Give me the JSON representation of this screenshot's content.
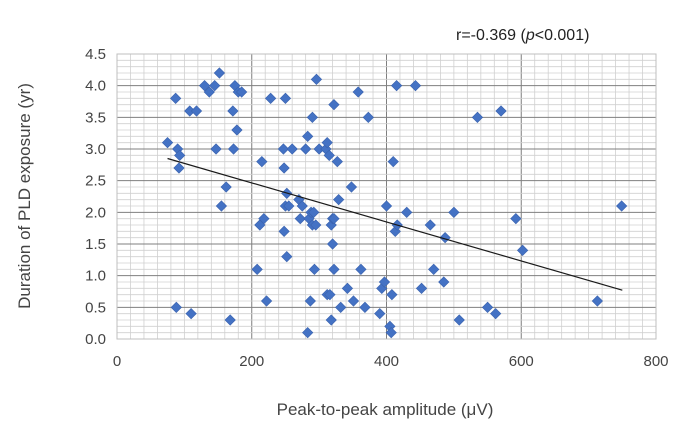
{
  "chart_data": {
    "type": "scatter",
    "xlabel": "Peak-to-peak amplitude (μV)",
    "ylabel": "Duration of PLD exposure (yr)",
    "xlim": [
      0,
      800
    ],
    "ylim": [
      0,
      4.5
    ],
    "x_ticks": [
      0,
      200,
      400,
      600,
      800
    ],
    "y_ticks": [
      "0.0",
      "0.5",
      "1.0",
      "1.5",
      "2.0",
      "2.5",
      "3.0",
      "3.5",
      "4.0",
      "4.5"
    ],
    "grid": true,
    "marker_color": "#4472C4",
    "annotation": {
      "prefix": "r=-0.369 (",
      "p_symbol": "p",
      "suffix": "<0.001)"
    },
    "trendline": {
      "x": [
        75,
        750
      ],
      "y": [
        2.85,
        0.77
      ]
    },
    "points": [
      {
        "x": 75,
        "y": 3.1
      },
      {
        "x": 87,
        "y": 3.8
      },
      {
        "x": 90,
        "y": 3.0
      },
      {
        "x": 93,
        "y": 2.9
      },
      {
        "x": 92,
        "y": 2.7
      },
      {
        "x": 88,
        "y": 0.5
      },
      {
        "x": 108,
        "y": 3.6
      },
      {
        "x": 118,
        "y": 3.6
      },
      {
        "x": 110,
        "y": 0.4
      },
      {
        "x": 130,
        "y": 4.0
      },
      {
        "x": 137,
        "y": 3.9
      },
      {
        "x": 145,
        "y": 4.0
      },
      {
        "x": 152,
        "y": 4.2
      },
      {
        "x": 147,
        "y": 3.0
      },
      {
        "x": 155,
        "y": 2.1
      },
      {
        "x": 162,
        "y": 2.4
      },
      {
        "x": 168,
        "y": 0.3
      },
      {
        "x": 172,
        "y": 3.6
      },
      {
        "x": 175,
        "y": 4.0
      },
      {
        "x": 178,
        "y": 3.3
      },
      {
        "x": 180,
        "y": 3.9
      },
      {
        "x": 185,
        "y": 3.9
      },
      {
        "x": 173,
        "y": 3.0
      },
      {
        "x": 208,
        "y": 1.1
      },
      {
        "x": 212,
        "y": 1.8
      },
      {
        "x": 215,
        "y": 2.8
      },
      {
        "x": 218,
        "y": 1.9
      },
      {
        "x": 222,
        "y": 0.6
      },
      {
        "x": 228,
        "y": 3.8
      },
      {
        "x": 250,
        "y": 3.8
      },
      {
        "x": 247,
        "y": 3.0
      },
      {
        "x": 248,
        "y": 2.7
      },
      {
        "x": 250,
        "y": 2.1
      },
      {
        "x": 252,
        "y": 2.3
      },
      {
        "x": 255,
        "y": 2.1
      },
      {
        "x": 248,
        "y": 1.7
      },
      {
        "x": 252,
        "y": 1.3
      },
      {
        "x": 260,
        "y": 3.0
      },
      {
        "x": 270,
        "y": 2.2
      },
      {
        "x": 272,
        "y": 1.9
      },
      {
        "x": 275,
        "y": 2.1
      },
      {
        "x": 280,
        "y": 3.0
      },
      {
        "x": 283,
        "y": 3.2
      },
      {
        "x": 285,
        "y": 1.9
      },
      {
        "x": 288,
        "y": 2.0
      },
      {
        "x": 290,
        "y": 1.8
      },
      {
        "x": 292,
        "y": 2.0
      },
      {
        "x": 295,
        "y": 1.8
      },
      {
        "x": 290,
        "y": 3.5
      },
      {
        "x": 296,
        "y": 4.1
      },
      {
        "x": 293,
        "y": 1.1
      },
      {
        "x": 287,
        "y": 0.6
      },
      {
        "x": 283,
        "y": 0.1
      },
      {
        "x": 300,
        "y": 3.0
      },
      {
        "x": 310,
        "y": 3.0
      },
      {
        "x": 312,
        "y": 3.1
      },
      {
        "x": 315,
        "y": 2.9
      },
      {
        "x": 318,
        "y": 1.8
      },
      {
        "x": 320,
        "y": 1.9
      },
      {
        "x": 322,
        "y": 1.9
      },
      {
        "x": 320,
        "y": 1.5
      },
      {
        "x": 322,
        "y": 1.1
      },
      {
        "x": 312,
        "y": 0.7
      },
      {
        "x": 316,
        "y": 0.7
      },
      {
        "x": 318,
        "y": 0.3
      },
      {
        "x": 322,
        "y": 3.7
      },
      {
        "x": 327,
        "y": 2.8
      },
      {
        "x": 329,
        "y": 2.2
      },
      {
        "x": 332,
        "y": 0.5
      },
      {
        "x": 342,
        "y": 0.8
      },
      {
        "x": 348,
        "y": 2.4
      },
      {
        "x": 351,
        "y": 0.6
      },
      {
        "x": 358,
        "y": 3.9
      },
      {
        "x": 362,
        "y": 1.1
      },
      {
        "x": 368,
        "y": 0.5
      },
      {
        "x": 373,
        "y": 3.5
      },
      {
        "x": 390,
        "y": 0.4
      },
      {
        "x": 393,
        "y": 0.8
      },
      {
        "x": 397,
        "y": 0.9
      },
      {
        "x": 400,
        "y": 2.1
      },
      {
        "x": 405,
        "y": 0.2
      },
      {
        "x": 407,
        "y": 0.1
      },
      {
        "x": 408,
        "y": 0.7
      },
      {
        "x": 410,
        "y": 2.8
      },
      {
        "x": 413,
        "y": 1.7
      },
      {
        "x": 416,
        "y": 1.8
      },
      {
        "x": 415,
        "y": 4.0
      },
      {
        "x": 430,
        "y": 2.0
      },
      {
        "x": 443,
        "y": 4.0
      },
      {
        "x": 452,
        "y": 0.8
      },
      {
        "x": 465,
        "y": 1.8
      },
      {
        "x": 470,
        "y": 1.1
      },
      {
        "x": 485,
        "y": 0.9
      },
      {
        "x": 487,
        "y": 1.6
      },
      {
        "x": 500,
        "y": 2.0
      },
      {
        "x": 508,
        "y": 0.3
      },
      {
        "x": 535,
        "y": 3.5
      },
      {
        "x": 550,
        "y": 0.5
      },
      {
        "x": 562,
        "y": 0.4
      },
      {
        "x": 570,
        "y": 3.6
      },
      {
        "x": 592,
        "y": 1.9
      },
      {
        "x": 602,
        "y": 1.4
      },
      {
        "x": 713,
        "y": 0.6
      },
      {
        "x": 749,
        "y": 2.1
      }
    ]
  }
}
